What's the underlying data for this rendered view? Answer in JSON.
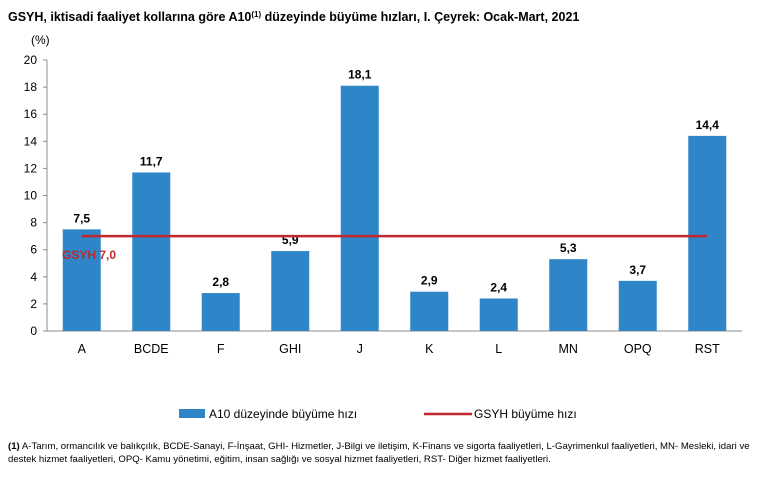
{
  "title": {
    "main": "GSYH, iktisadi faaliyet kollarına göre A10",
    "sup": "(1)",
    "rest": " düzeyinde büyüme hızları, I. Çeyrek: Ocak-Mart, 2021"
  },
  "chart_data": {
    "type": "bar",
    "ylabel": "(%)",
    "ylim": [
      0,
      20
    ],
    "yticks": [
      0,
      2,
      4,
      6,
      8,
      10,
      12,
      14,
      16,
      18,
      20
    ],
    "grid": false,
    "legend_position": "bottom",
    "categories": [
      "A",
      "BCDE",
      "F",
      "GHI",
      "J",
      "K",
      "L",
      "MN",
      "OPQ",
      "RST"
    ],
    "series": [
      {
        "name": "A10 düzeyinde büyüme hızı",
        "type": "bar",
        "color": "#2e86c8",
        "values": [
          7.5,
          11.7,
          2.8,
          5.9,
          18.1,
          2.9,
          2.4,
          5.3,
          3.7,
          14.4
        ],
        "labels": [
          "7,5",
          "11,7",
          "2,8",
          "5,9",
          "18,1",
          "2,9",
          "2,4",
          "5,3",
          "3,7",
          "14,4"
        ]
      },
      {
        "name": "GSYH büyüme hızı",
        "type": "line",
        "color": "#c0282d",
        "value": 7.0,
        "annotation": "GSYH  7,0"
      }
    ]
  },
  "footnote": {
    "marker": "(1)",
    "text": " A-Tarım, ormancılık ve balıkçılık, BCDE-Sanayi, F-İnşaat, GHI- Hizmetler, J-Bilgi ve iletişim, K-Finans ve sigorta faaliyetleri, L-Gayrimenkul faaliyetleri, MN- Mesleki, idari ve destek hizmet faaliyetleri, OPQ- Kamu yönetimi, eğitim, insan sağlığı ve sosyal hizmet faaliyetleri, RST- Diğer hizmet faaliyetleri."
  }
}
